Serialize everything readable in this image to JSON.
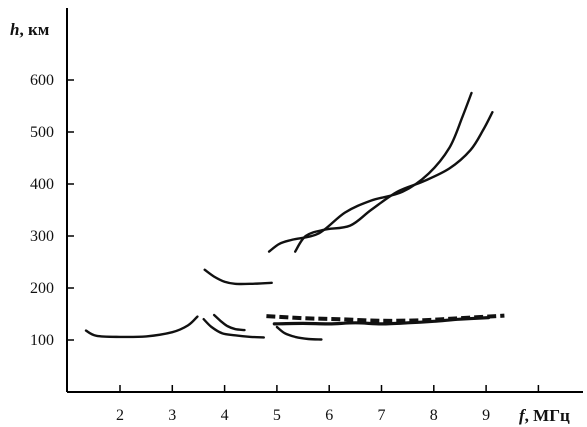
{
  "chart_data": {
    "type": "line",
    "xlabel": "f",
    "xunit": ", МГц",
    "ylabel": "h",
    "yunit": ", км",
    "xlim": [
      1,
      10
    ],
    "ylim": [
      0,
      700
    ],
    "xticks": [
      2,
      3,
      4,
      5,
      6,
      7,
      8,
      9,
      10
    ],
    "xtick_labels": [
      "2",
      "3",
      "4",
      "5",
      "6",
      "7",
      "8",
      "9",
      ""
    ],
    "yticks": [
      100,
      200,
      300,
      400,
      500,
      600
    ],
    "ytick_labels": [
      "100",
      "200",
      "300",
      "400",
      "500",
      "600"
    ],
    "grid": false,
    "series": [
      {
        "x": [
          1.35,
          1.55,
          2.0,
          2.5,
          3.0,
          3.3,
          3.48
        ],
        "y": [
          118,
          108,
          106,
          107,
          115,
          128,
          145
        ],
        "style": "solid"
      },
      {
        "x": [
          3.6,
          3.75,
          3.95,
          4.2,
          4.5,
          4.75
        ],
        "y": [
          140,
          125,
          113,
          109,
          106,
          105
        ],
        "style": "solid"
      },
      {
        "x": [
          3.8,
          3.92,
          4.05,
          4.2,
          4.38
        ],
        "y": [
          148,
          137,
          127,
          121,
          119
        ],
        "style": "solid"
      },
      {
        "x": [
          3.62,
          3.8,
          4.0,
          4.2,
          4.5,
          4.9
        ],
        "y": [
          235,
          222,
          212,
          208,
          208,
          210
        ],
        "style": "solid"
      },
      {
        "x": [
          5.0,
          5.15,
          5.35,
          5.6,
          5.85
        ],
        "y": [
          125,
          113,
          106,
          102,
          101
        ],
        "style": "solid"
      },
      {
        "x": [
          4.95,
          5.5,
          6.0,
          6.5,
          7.0,
          7.5,
          8.0,
          8.5,
          9.05
        ],
        "y": [
          131,
          132,
          131,
          133,
          131,
          133,
          136,
          140,
          143
        ],
        "style": "solid"
      },
      {
        "x": [
          4.8,
          5.5,
          6.2,
          7.0,
          7.8,
          8.5,
          9.35
        ],
        "y": [
          146,
          142,
          140,
          137,
          138,
          142,
          147
        ],
        "style": "dashed"
      },
      {
        "x": [
          4.85,
          5.05,
          5.3,
          5.8,
          6.3,
          6.8,
          7.4,
          7.9,
          8.3,
          8.55,
          8.72
        ],
        "y": [
          270,
          285,
          293,
          305,
          345,
          368,
          385,
          420,
          470,
          530,
          575
        ],
        "style": "solid"
      },
      {
        "x": [
          5.35,
          5.55,
          5.9,
          6.4,
          6.8,
          7.3,
          7.8,
          8.3,
          8.7,
          8.95,
          9.12
        ],
        "y": [
          270,
          300,
          312,
          320,
          350,
          385,
          405,
          430,
          465,
          505,
          538
        ],
        "style": "solid"
      }
    ]
  }
}
